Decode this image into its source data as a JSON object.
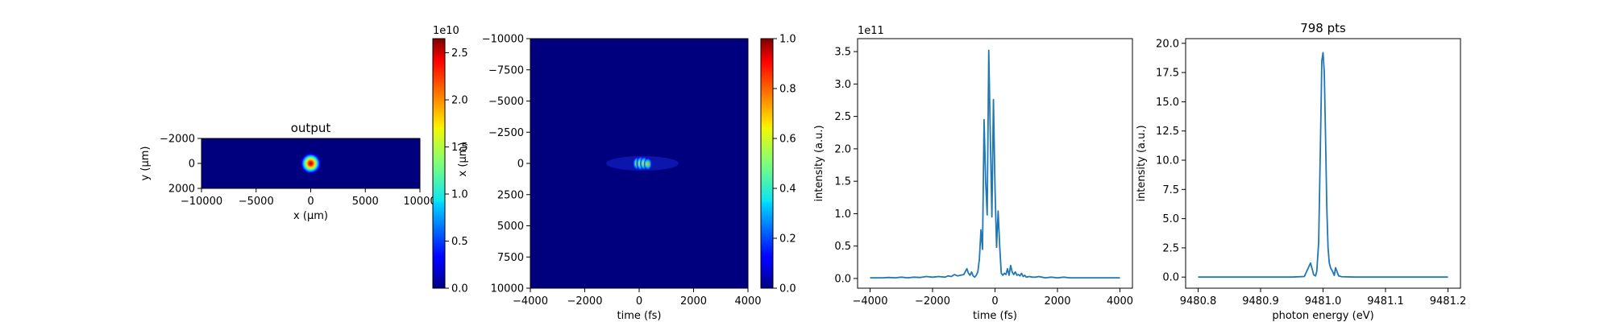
{
  "chart_data": [
    {
      "type": "heatmap",
      "title": "output",
      "xlabel": "x (μm)",
      "ylabel": "y (μm)",
      "xlim": [
        -10000,
        10000
      ],
      "ylim": [
        2000,
        -2000
      ],
      "xticks": [
        -10000,
        -5000,
        0,
        5000,
        10000
      ],
      "yticks": [
        -2000,
        0,
        2000
      ],
      "colormap": "jet",
      "spot": {
        "x": 0,
        "y": 0,
        "sigma_x": 500,
        "sigma_y": 450
      },
      "colorbar": {
        "min": 0,
        "max": 2.65,
        "ticks": [
          0.0,
          0.5,
          1.0,
          1.5,
          2.0,
          2.5
        ],
        "offset_label": "1e10"
      }
    },
    {
      "type": "heatmap",
      "xlabel": "time (fs)",
      "ylabel": "x (μm)",
      "xlim": [
        -4000,
        4000
      ],
      "ylim": [
        -10000,
        10000
      ],
      "xticks": [
        -4000,
        -2000,
        0,
        2000,
        4000
      ],
      "yticks": [
        -10000,
        -7500,
        -5000,
        -2500,
        0,
        2500,
        5000,
        7500,
        10000
      ],
      "colormap": "jet",
      "spots": [
        {
          "t": -80,
          "x": 0,
          "amp": 0.55
        },
        {
          "t": 50,
          "x": 0,
          "amp": 0.9
        },
        {
          "t": 180,
          "x": 0,
          "amp": 0.75
        },
        {
          "t": 320,
          "x": 50,
          "amp": 0.45
        }
      ],
      "colorbar": {
        "min": 0,
        "max": 1.0,
        "ticks": [
          0.0,
          0.2,
          0.4,
          0.6,
          0.8,
          1.0
        ]
      }
    },
    {
      "type": "line",
      "xlabel": "time (fs)",
      "ylabel": "intensity (a.u.)",
      "offset_label": "1e11",
      "xlim": [
        -4400,
        4400
      ],
      "ylim": [
        -0.15,
        3.7
      ],
      "xticks": [
        -4000,
        -2000,
        0,
        2000,
        4000
      ],
      "yticks": [
        0.0,
        0.5,
        1.0,
        1.5,
        2.0,
        2.5,
        3.0,
        3.5
      ],
      "color": "#1f77b4",
      "series": [
        {
          "x": [
            -4000,
            -3800,
            -3600,
            -3400,
            -3200,
            -3000,
            -2800,
            -2600,
            -2400,
            -2200,
            -2000,
            -1800,
            -1600,
            -1500,
            -1400,
            -1300,
            -1200,
            -1100,
            -1000,
            -900,
            -850,
            -800,
            -750,
            -700,
            -650,
            -600,
            -550,
            -500,
            -450,
            -400,
            -350,
            -300,
            -250,
            -200,
            -150,
            -100,
            -50,
            0,
            50,
            100,
            150,
            200,
            250,
            300,
            350,
            400,
            450,
            500,
            550,
            600,
            650,
            700,
            750,
            800,
            850,
            900,
            950,
            1000,
            1100,
            1200,
            1300,
            1400,
            1500,
            1600,
            1800,
            2000,
            2200,
            2400,
            2600,
            2800,
            3000,
            3200,
            3400,
            3600,
            3800,
            4000
          ],
          "y": [
            0.01,
            0.01,
            0.01,
            0.015,
            0.01,
            0.02,
            0.01,
            0.02,
            0.015,
            0.03,
            0.02,
            0.03,
            0.02,
            0.04,
            0.03,
            0.06,
            0.04,
            0.05,
            0.06,
            0.15,
            0.08,
            0.05,
            0.1,
            0.04,
            0.02,
            0.05,
            0.1,
            0.3,
            0.75,
            0.45,
            2.45,
            1.5,
            0.98,
            3.52,
            2.2,
            0.95,
            2.76,
            1.4,
            0.48,
            1.04,
            0.5,
            0.08,
            0.05,
            0.08,
            0.06,
            0.15,
            0.05,
            0.2,
            0.1,
            0.06,
            0.1,
            0.05,
            0.06,
            0.04,
            0.08,
            0.03,
            0.05,
            0.02,
            0.03,
            0.02,
            0.02,
            0.03,
            0.02,
            0.01,
            0.02,
            0.01,
            0.02,
            0.01,
            0.01,
            0.01,
            0.01,
            0.01,
            0.01,
            0.01,
            0.01,
            0.01
          ]
        }
      ]
    },
    {
      "type": "line",
      "title": "798 pts",
      "xlabel": "photon energy (eV)",
      "ylabel": "intensity (a.u.)",
      "xlim": [
        9480.78,
        9481.22
      ],
      "ylim": [
        -0.95,
        20.4
      ],
      "xticks": [
        9480.8,
        9480.9,
        9481.0,
        9481.1,
        9481.2
      ],
      "yticks": [
        0.0,
        2.5,
        5.0,
        7.5,
        10.0,
        12.5,
        15.0,
        17.5,
        20.0
      ],
      "color": "#1f77b4",
      "series": [
        {
          "x": [
            9480.8,
            9480.9,
            9480.95,
            9480.97,
            9480.98,
            9480.985,
            9480.988,
            9480.99,
            9480.993,
            9480.995,
            9480.997,
            9480.998,
            9481.0,
            9481.002,
            9481.004,
            9481.006,
            9481.008,
            9481.01,
            9481.012,
            9481.015,
            9481.018,
            9481.02,
            9481.025,
            9481.03,
            9481.05,
            9481.1,
            9481.2
          ],
          "y": [
            0,
            0,
            0,
            0.05,
            1.2,
            0.2,
            0.1,
            0.5,
            3.0,
            9.0,
            15.0,
            18.5,
            19.2,
            17.5,
            12.0,
            6.0,
            2.5,
            1.2,
            0.8,
            0.5,
            0.15,
            0.8,
            0.1,
            0.03,
            0,
            0,
            0
          ]
        }
      ]
    }
  ]
}
